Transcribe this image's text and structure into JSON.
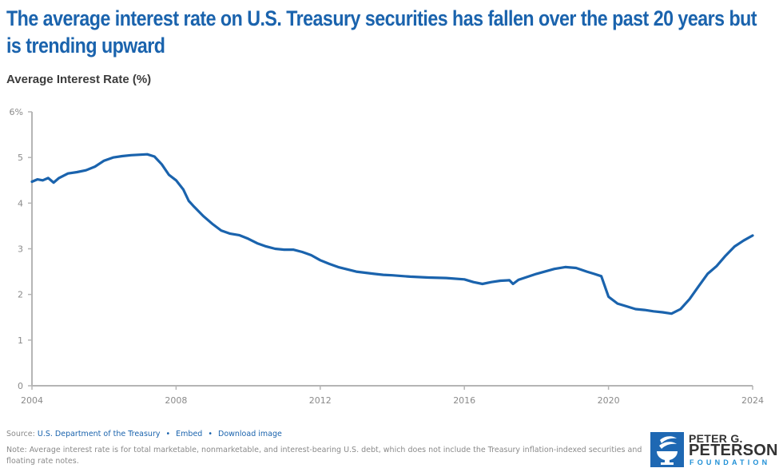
{
  "header": {
    "title": "The average interest rate on U.S. Treasury securities has fallen over the past 20 years but is trending upward",
    "subtitle": "Average Interest Rate (%)"
  },
  "footer": {
    "source_label": "Source:",
    "source_link": "U.S. Department of the Treasury",
    "separator": "•",
    "embed_link": "Embed",
    "download_link": "Download image",
    "note": "Note: Average interest rate is for total marketable, nonmarketable, and interest-bearing U.S. debt, which does not include the Treasury inflation-indexed securities and floating rate notes."
  },
  "logo": {
    "line1": "PETER G.",
    "line2": "PETERSON",
    "line3": "FOUNDATION",
    "icon": "torch-icon"
  },
  "colors": {
    "line": "#1a63ad",
    "title": "#1a63ad",
    "axis": "#b5b5b5",
    "logo_blue": "#1e68b3",
    "logo_accent": "#1e8fd6"
  },
  "chart_data": {
    "type": "line",
    "title": "The average interest rate on U.S. Treasury securities has fallen over the past 20 years but is trending upward",
    "ylabel": "Average Interest Rate (%)",
    "xlabel": "",
    "xlim": [
      2004,
      2024
    ],
    "ylim": [
      0,
      6
    ],
    "x_ticks": [
      2004,
      2008,
      2012,
      2016,
      2020,
      2024
    ],
    "x_tick_labels": [
      "2004",
      "2008",
      "2012",
      "2016",
      "2020",
      "2024"
    ],
    "y_ticks": [
      0,
      1,
      2,
      3,
      4,
      5,
      6
    ],
    "y_tick_labels": [
      "0",
      "1",
      "2",
      "3",
      "4",
      "5",
      "6%"
    ],
    "grid": false,
    "legend": "none",
    "series": [
      {
        "name": "Average Interest Rate",
        "x": [
          2004.0,
          2004.15,
          2004.3,
          2004.45,
          2004.6,
          2004.75,
          2005.0,
          2005.25,
          2005.5,
          2005.75,
          2006.0,
          2006.25,
          2006.5,
          2006.75,
          2007.0,
          2007.2,
          2007.4,
          2007.6,
          2007.8,
          2008.0,
          2008.2,
          2008.35,
          2008.5,
          2008.75,
          2009.0,
          2009.25,
          2009.5,
          2009.75,
          2010.0,
          2010.25,
          2010.5,
          2010.75,
          2011.0,
          2011.25,
          2011.5,
          2011.75,
          2012.0,
          2012.25,
          2012.5,
          2013.0,
          2013.5,
          2013.75,
          2014.0,
          2014.5,
          2015.0,
          2015.5,
          2016.0,
          2016.25,
          2016.5,
          2016.75,
          2017.0,
          2017.25,
          2017.35,
          2017.5,
          2018.0,
          2018.5,
          2018.8,
          2019.1,
          2019.4,
          2019.6,
          2019.8,
          2020.0,
          2020.25,
          2020.5,
          2020.75,
          2021.0,
          2021.25,
          2021.5,
          2021.75,
          2022.0,
          2022.25,
          2022.5,
          2022.75,
          2023.0,
          2023.25,
          2023.5,
          2023.75,
          2024.0
        ],
        "values": [
          4.47,
          4.52,
          4.5,
          4.55,
          4.45,
          4.55,
          4.65,
          4.68,
          4.72,
          4.8,
          4.93,
          5.0,
          5.03,
          5.05,
          5.06,
          5.07,
          5.02,
          4.85,
          4.62,
          4.5,
          4.3,
          4.05,
          3.92,
          3.72,
          3.55,
          3.4,
          3.33,
          3.3,
          3.22,
          3.12,
          3.05,
          3.0,
          2.98,
          2.98,
          2.93,
          2.86,
          2.75,
          2.67,
          2.6,
          2.5,
          2.45,
          2.43,
          2.42,
          2.39,
          2.37,
          2.36,
          2.33,
          2.27,
          2.23,
          2.27,
          2.3,
          2.31,
          2.23,
          2.32,
          2.45,
          2.56,
          2.6,
          2.58,
          2.5,
          2.45,
          2.4,
          1.95,
          1.8,
          1.74,
          1.68,
          1.66,
          1.63,
          1.61,
          1.58,
          1.68,
          1.9,
          2.18,
          2.45,
          2.62,
          2.85,
          3.05,
          3.18,
          3.29
        ]
      }
    ],
    "source": "U.S. Department of the Treasury",
    "note": "Average interest rate is for total marketable, nonmarketable, and interest-bearing U.S. debt, which does not include the Treasury inflation-indexed securities and floating rate notes."
  }
}
